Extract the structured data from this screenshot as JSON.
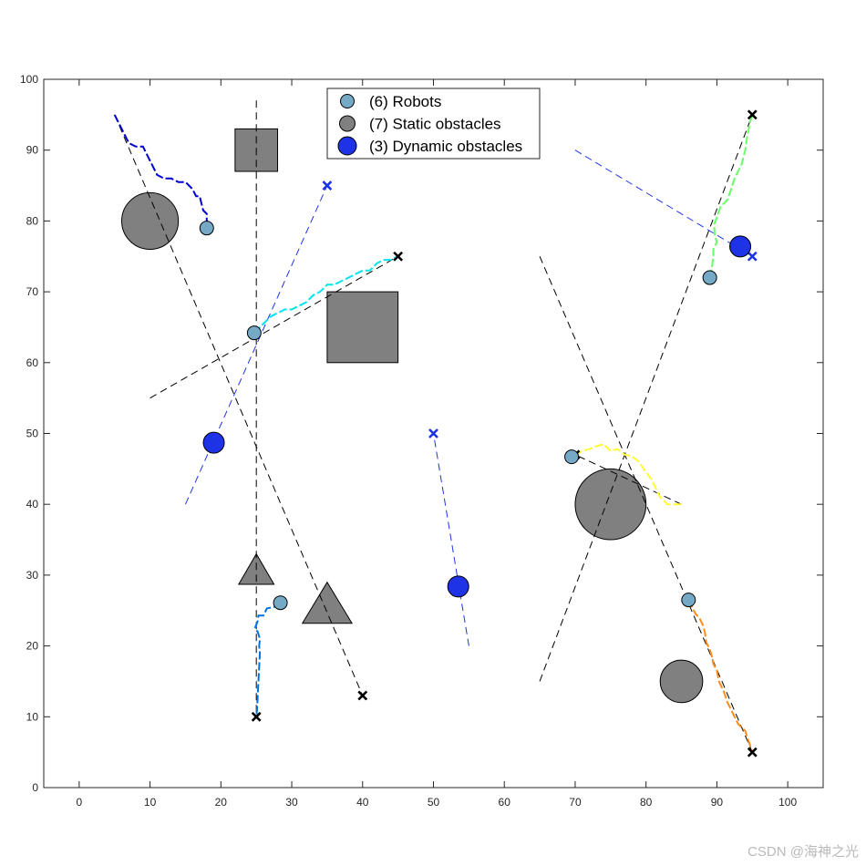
{
  "chart_data": {
    "type": "scatter",
    "xlim": [
      -5,
      105
    ],
    "ylim": [
      0,
      100
    ],
    "xticks": [
      0,
      10,
      20,
      30,
      40,
      50,
      60,
      70,
      80,
      90,
      100
    ],
    "yticks": [
      0,
      10,
      20,
      30,
      40,
      50,
      60,
      70,
      80,
      90,
      100
    ],
    "grid": false,
    "legend": {
      "placement": "top-center",
      "entries": [
        {
          "label": "(6) Robots",
          "color": "#76a9c6"
        },
        {
          "label": "(7) Static obstacles",
          "color": "#808080"
        },
        {
          "label": "(3) Dynamic obstacles",
          "color": "#1f33e6"
        }
      ]
    },
    "robots": [
      {
        "start": [
          5,
          95
        ],
        "goal": [
          40,
          13
        ],
        "position": [
          18,
          79
        ],
        "color": "#0000cc",
        "path": [
          [
            5,
            95
          ],
          [
            6,
            93
          ],
          [
            7,
            91
          ],
          [
            8,
            90.5
          ],
          [
            9,
            90.5
          ],
          [
            10,
            88.5
          ],
          [
            11,
            86.5
          ],
          [
            12,
            86
          ],
          [
            13,
            86
          ],
          [
            14,
            85.5
          ],
          [
            15,
            85.5
          ],
          [
            16,
            84.5
          ],
          [
            16.5,
            83.5
          ],
          [
            17,
            83.5
          ],
          [
            17.5,
            81.5
          ],
          [
            18,
            81
          ],
          [
            18,
            79
          ]
        ]
      },
      {
        "start": [
          10,
          55
        ],
        "goal": [
          45,
          75
        ],
        "position": [
          24.7,
          64.2
        ],
        "color": "#00e5ee",
        "path": [
          [
            24.7,
            64.2
          ],
          [
            26,
            65.5
          ],
          [
            27,
            66.5
          ],
          [
            28,
            67
          ],
          [
            29,
            67.5
          ],
          [
            30,
            67.5
          ],
          [
            31,
            68
          ],
          [
            32,
            68.5
          ],
          [
            33,
            69.5
          ],
          [
            34,
            70
          ],
          [
            35,
            71
          ],
          [
            36,
            71
          ],
          [
            37,
            71.5
          ],
          [
            38,
            72
          ],
          [
            39,
            72.5
          ],
          [
            40,
            73
          ],
          [
            41,
            73
          ],
          [
            42,
            74
          ],
          [
            43,
            74.5
          ],
          [
            44,
            74.5
          ],
          [
            45,
            75
          ]
        ]
      },
      {
        "start": [
          25,
          97
        ],
        "goal": [
          25,
          10
        ],
        "position": [
          28.4,
          26.1
        ],
        "color": "#0072e0",
        "path": [
          [
            28.4,
            26.1
          ],
          [
            27.5,
            25.5
          ],
          [
            26.5,
            25.3
          ],
          [
            26,
            24.3
          ],
          [
            25.3,
            24.3
          ],
          [
            25.2,
            23.5
          ],
          [
            24.8,
            22.5
          ],
          [
            25.2,
            22
          ],
          [
            25.5,
            21
          ],
          [
            25.4,
            20
          ],
          [
            25.5,
            19
          ],
          [
            25.4,
            17
          ],
          [
            25.3,
            15
          ],
          [
            25.2,
            13
          ],
          [
            25.1,
            11
          ],
          [
            25,
            10
          ]
        ]
      },
      {
        "start": [
          65,
          15
        ],
        "goal": [
          95,
          95
        ],
        "position": [
          89,
          72
        ],
        "color": "#66ff66",
        "path": [
          [
            89,
            72
          ],
          [
            89.3,
            73.5
          ],
          [
            89.5,
            75
          ],
          [
            89.5,
            76
          ],
          [
            90,
            77
          ],
          [
            89.7,
            78
          ],
          [
            89.6,
            79.5
          ],
          [
            90,
            80.5
          ],
          [
            90.5,
            82
          ],
          [
            91.5,
            83
          ],
          [
            92,
            84.5
          ],
          [
            92.5,
            86
          ],
          [
            93.5,
            88
          ],
          [
            94,
            90
          ],
          [
            94.3,
            92
          ],
          [
            94.7,
            94
          ],
          [
            95,
            95
          ]
        ]
      },
      {
        "start": [
          85,
          40
        ],
        "goal": [
          70,
          47
        ],
        "position": [
          69.5,
          46.7
        ],
        "color": "#ffff33",
        "path": [
          [
            85,
            40
          ],
          [
            83,
            40
          ],
          [
            82,
            41
          ],
          [
            81.5,
            42
          ],
          [
            80.8,
            43.5
          ],
          [
            80,
            44.5
          ],
          [
            79,
            46
          ],
          [
            78,
            46.8
          ],
          [
            77,
            47
          ],
          [
            76,
            47.8
          ],
          [
            75,
            47.5
          ],
          [
            74,
            48.5
          ],
          [
            73,
            48.2
          ],
          [
            72,
            47.8
          ],
          [
            71,
            47.5
          ],
          [
            70,
            47
          ]
        ]
      },
      {
        "start": [
          65,
          75
        ],
        "goal": [
          95,
          5
        ],
        "position": [
          86,
          26.5
        ],
        "color": "#ff8c1a",
        "path": [
          [
            86,
            26.5
          ],
          [
            86.5,
            25.5
          ],
          [
            87,
            24.5
          ],
          [
            87.5,
            24
          ],
          [
            88,
            23
          ],
          [
            88.3,
            22
          ],
          [
            88.5,
            20.5
          ],
          [
            89,
            19.5
          ],
          [
            89.3,
            18.5
          ],
          [
            89.5,
            17.5
          ],
          [
            90,
            16.5
          ],
          [
            90.3,
            15
          ],
          [
            91,
            13.5
          ],
          [
            91.5,
            12
          ],
          [
            92,
            11
          ],
          [
            92.5,
            10
          ],
          [
            93,
            9
          ],
          [
            93.5,
            8.5
          ],
          [
            94,
            8
          ],
          [
            94.5,
            6.5
          ],
          [
            95,
            5
          ]
        ]
      }
    ],
    "static_obstacles": [
      {
        "shape": "circle",
        "center": [
          10,
          80
        ],
        "radius": 4
      },
      {
        "shape": "square",
        "x": [
          22,
          28
        ],
        "y": [
          87,
          93
        ]
      },
      {
        "shape": "square",
        "x": [
          35,
          45
        ],
        "y": [
          60,
          70
        ]
      },
      {
        "shape": "triangle",
        "vertices": [
          [
            22.5,
            28.7
          ],
          [
            27.5,
            28.7
          ],
          [
            25,
            33
          ]
        ]
      },
      {
        "shape": "triangle",
        "vertices": [
          [
            31.5,
            23.2
          ],
          [
            38.5,
            23.2
          ],
          [
            35,
            29
          ]
        ]
      },
      {
        "shape": "circle",
        "center": [
          75,
          40
        ],
        "radius": 5
      },
      {
        "shape": "circle",
        "center": [
          85,
          15
        ],
        "radius": 3
      }
    ],
    "dynamic_obstacles": [
      {
        "start": [
          15,
          40
        ],
        "goal": [
          35,
          85
        ],
        "position": [
          19,
          48.7
        ]
      },
      {
        "start": [
          55,
          20
        ],
        "goal": [
          50,
          50
        ],
        "position": [
          53.5,
          28.4
        ]
      },
      {
        "start": [
          70,
          90
        ],
        "goal": [
          95,
          75
        ],
        "position": [
          93.3,
          76.4
        ]
      }
    ]
  },
  "watermark": "CSDN @海神之光"
}
